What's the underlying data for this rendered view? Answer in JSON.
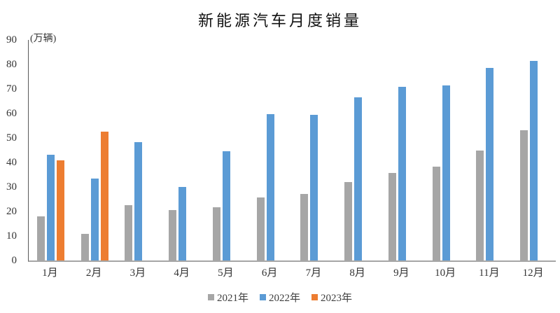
{
  "title": "新能源汽车月度销量",
  "chart_data": {
    "type": "bar",
    "title": "新能源汽车月度销量",
    "unit_label": "(万辆)",
    "xlabel": "",
    "ylabel": "万辆",
    "categories": [
      "1月",
      "2月",
      "3月",
      "4月",
      "5月",
      "6月",
      "7月",
      "8月",
      "9月",
      "10月",
      "11月",
      "12月"
    ],
    "series": [
      {
        "name": "2021年",
        "color": "#A6A6A6",
        "values": [
          17.9,
          11.0,
          22.6,
          20.6,
          21.7,
          25.6,
          27.1,
          32.1,
          35.7,
          38.3,
          45.0,
          53.1
        ]
      },
      {
        "name": "2022年",
        "color": "#5B9BD5",
        "values": [
          43.1,
          33.4,
          48.4,
          29.9,
          44.7,
          59.6,
          59.3,
          66.6,
          70.8,
          71.4,
          78.6,
          81.4
        ]
      },
      {
        "name": "2023年",
        "color": "#ED7D31",
        "values": [
          40.8,
          52.5,
          null,
          null,
          null,
          null,
          null,
          null,
          null,
          null,
          null,
          null
        ]
      }
    ],
    "ylim": [
      0,
      90
    ],
    "yticks": [
      0,
      10,
      20,
      30,
      40,
      50,
      60,
      70,
      80,
      90
    ],
    "grid": false,
    "legend_position": "bottom",
    "axis_color": "#595959",
    "baseline_color": "#A6A6A6"
  }
}
